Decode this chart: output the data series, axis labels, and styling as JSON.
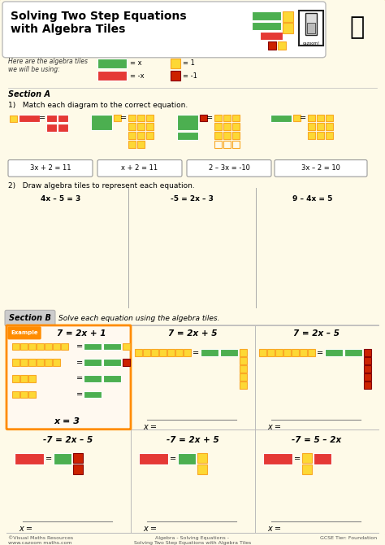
{
  "title": "Solving Two Step Equations\nwith Algebra Tiles",
  "bg_color": "#FEFAE8",
  "border_color": "#E8C87A",
  "green_color": "#4CAF50",
  "red_color": "#E53935",
  "yellow_color": "#FDD835",
  "dark_yellow": "#F9A825",
  "dark_red": "#CC2200",
  "orange_color": "#FF8C00",
  "section_a_label": "Section A",
  "section_b_label": "Section B",
  "q1_text": "Match each diagram to the correct equation.",
  "q2_text": "Draw algebra tiles to represent each equation.",
  "section_b_subtitle": "Solve each equation using the algebra tiles.",
  "equations_q1": [
    "3x + 2 = 11",
    "x + 2 = 11",
    "2 – 3x = -10",
    "3x – 2 = 10"
  ],
  "equations_q2": [
    "4x – 5 = 3",
    "-5 = 2x – 3",
    "9 – 4x = 5"
  ],
  "section_b_eq1": [
    "7 = 2x + 1",
    "7 = 2x + 5",
    "7 = 2x – 5"
  ],
  "section_b_eq2": [
    "-7 = 2x – 5",
    "-7 = 2x + 5",
    "-7 = 5 – 2x"
  ],
  "example_label": "Example",
  "x_equals": "x = 3",
  "footer_left": "©Visual Maths Resources\nwww.cazoom maths.com",
  "footer_mid": "Algebra - Solving Equations -\nSolving Two Step Equations with Algebra Tiles",
  "footer_right": "GCSE Tier: Foundation"
}
